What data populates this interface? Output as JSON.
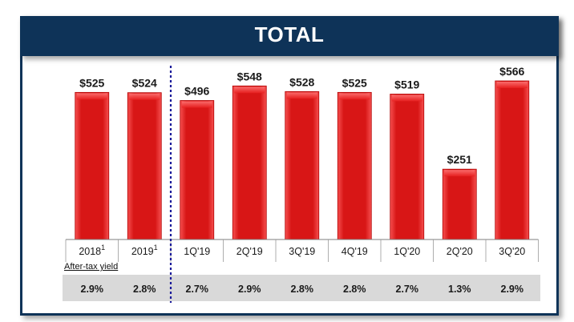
{
  "title": "TOTAL",
  "yield_label": "After-tax yield",
  "chart_data": {
    "type": "bar",
    "categories": [
      "2018",
      "2019",
      "1Q'19",
      "2Q'19",
      "3Q'19",
      "4Q'19",
      "1Q'20",
      "2Q'20",
      "3Q'20"
    ],
    "category_superscripts": [
      "1",
      "1",
      "",
      "",
      "",
      "",
      "",
      "",
      ""
    ],
    "values": [
      525,
      524,
      496,
      548,
      528,
      525,
      519,
      251,
      566
    ],
    "value_labels": [
      "$525",
      "$524",
      "$496",
      "$548",
      "$528",
      "$525",
      "$519",
      "$251",
      "$566"
    ],
    "after_tax_yield": [
      "2.9%",
      "2.8%",
      "2.7%",
      "2.9%",
      "2.8%",
      "2.8%",
      "2.7%",
      "1.3%",
      "2.9%"
    ],
    "ylim": [
      0,
      566
    ],
    "bar_color": "#e81c1c",
    "divider_after_index": 1,
    "divider_color": "#1a1a9a"
  }
}
